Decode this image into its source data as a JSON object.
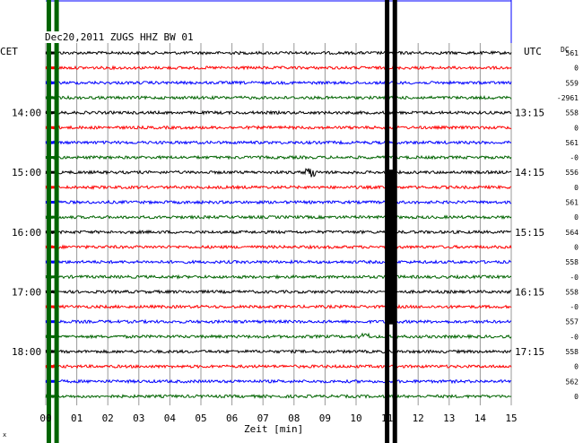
{
  "header": {
    "title": "Dec20,2011   ZUGS HHZ BW 01",
    "left_zone": "CET",
    "right_zone": "UTC",
    "dc_label": "DC"
  },
  "chart_data": {
    "type": "line",
    "title": "Dec20,2011   ZUGS HHZ BW 01",
    "xlabel": "Zeit [min]",
    "ylabel": "",
    "xlim": [
      0,
      15
    ],
    "x_ticks": [
      "00",
      "01",
      "02",
      "03",
      "04",
      "05",
      "06",
      "07",
      "08",
      "09",
      "10",
      "11",
      "12",
      "13",
      "14",
      "15"
    ],
    "left_time_labels": [
      {
        "row": 4,
        "label": "14:00"
      },
      {
        "row": 8,
        "label": "15:00"
      },
      {
        "row": 12,
        "label": "16:00"
      },
      {
        "row": 16,
        "label": "17:00"
      },
      {
        "row": 20,
        "label": "18:00"
      }
    ],
    "right_time_labels": [
      {
        "row": 4,
        "label": "13:15"
      },
      {
        "row": 8,
        "label": "14:15"
      },
      {
        "row": 12,
        "label": "15:15"
      },
      {
        "row": 16,
        "label": "16:15"
      },
      {
        "row": 20,
        "label": "17:15"
      }
    ],
    "trace_colors": [
      "#000000",
      "#ff0000",
      "#0000ff",
      "#006400"
    ],
    "dc_offsets": [
      "561",
      "0",
      "559",
      "-2961",
      "558",
      "0",
      "561",
      "-0",
      "556",
      "0",
      "561",
      "0",
      "564",
      "0",
      "558",
      "-0",
      "558",
      "-0",
      "557",
      "-0",
      "558",
      "0",
      "562",
      "0"
    ],
    "grid": true,
    "markers_min": [
      0.1,
      0.35,
      11.0,
      11.25
    ]
  },
  "corner_mark": "x"
}
